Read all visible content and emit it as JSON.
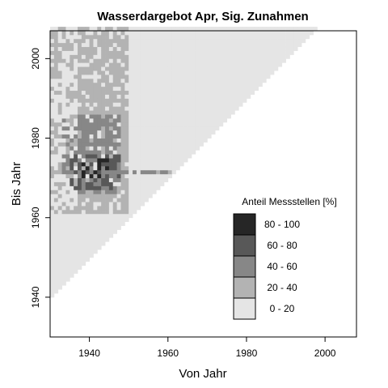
{
  "chart_data": {
    "type": "heatmap",
    "title": "Wasserdargebot Apr, Sig. Zunahmen",
    "xlabel": "Von Jahr",
    "ylabel": "Bis Jahr",
    "xlim": [
      1930,
      2008
    ],
    "ylim": [
      1930,
      2007
    ],
    "xticks": [
      "1940",
      "1960",
      "1980",
      "2000"
    ],
    "yticks": [
      "1940",
      "1960",
      "1980",
      "2000"
    ],
    "grid": false,
    "background_region": {
      "description": "valid domain (Bis Jahr >= Von Jahr + 10), share 0-20 %",
      "min_span_years": 10,
      "max_year": 2007
    },
    "legend": {
      "title": "Anteil Messstellen [%]",
      "placement": "right",
      "classes": [
        {
          "label": "80 - 100",
          "color": "#262626"
        },
        {
          "label": "60 -  80",
          "color": "#585858"
        },
        {
          "label": "40 -  60",
          "color": "#878787"
        },
        {
          "label": "20 -  40",
          "color": "#b3b3b3"
        },
        {
          "label": " 0 -  20",
          "color": "#e5e5e5"
        }
      ]
    },
    "colors": {
      "c0": "#e5e5e5",
      "c1": "#b3b3b3",
      "c2": "#878787",
      "c3": "#585858",
      "c4": "#262626"
    },
    "zones": [
      {
        "from": [
          1930,
          1961
        ],
        "to": [
          1937,
          2006
        ],
        "class": 1,
        "note": "scattered 20-40 % cells along left edge"
      },
      {
        "from": [
          1937,
          1961
        ],
        "to": [
          1949,
          2006
        ],
        "class": 1,
        "note": "main band of 20-40 %"
      },
      {
        "from": [
          1937,
          1966
        ],
        "to": [
          1948,
          1985
        ],
        "class": 2,
        "note": "core of 40-60 %"
      },
      {
        "from": [
          1935,
          1967
        ],
        "to": [
          1947,
          1975
        ],
        "class": 3,
        "note": "60-80 % cells"
      },
      {
        "from": [
          1938,
          1970
        ],
        "to": [
          1944,
          1975
        ],
        "class": 4,
        "note": "80-100 % cells near 1972"
      },
      {
        "from": [
          1944,
          1971
        ],
        "to": [
          1960,
          1972
        ],
        "class": 2,
        "note": "thin horizontal streak"
      }
    ]
  }
}
